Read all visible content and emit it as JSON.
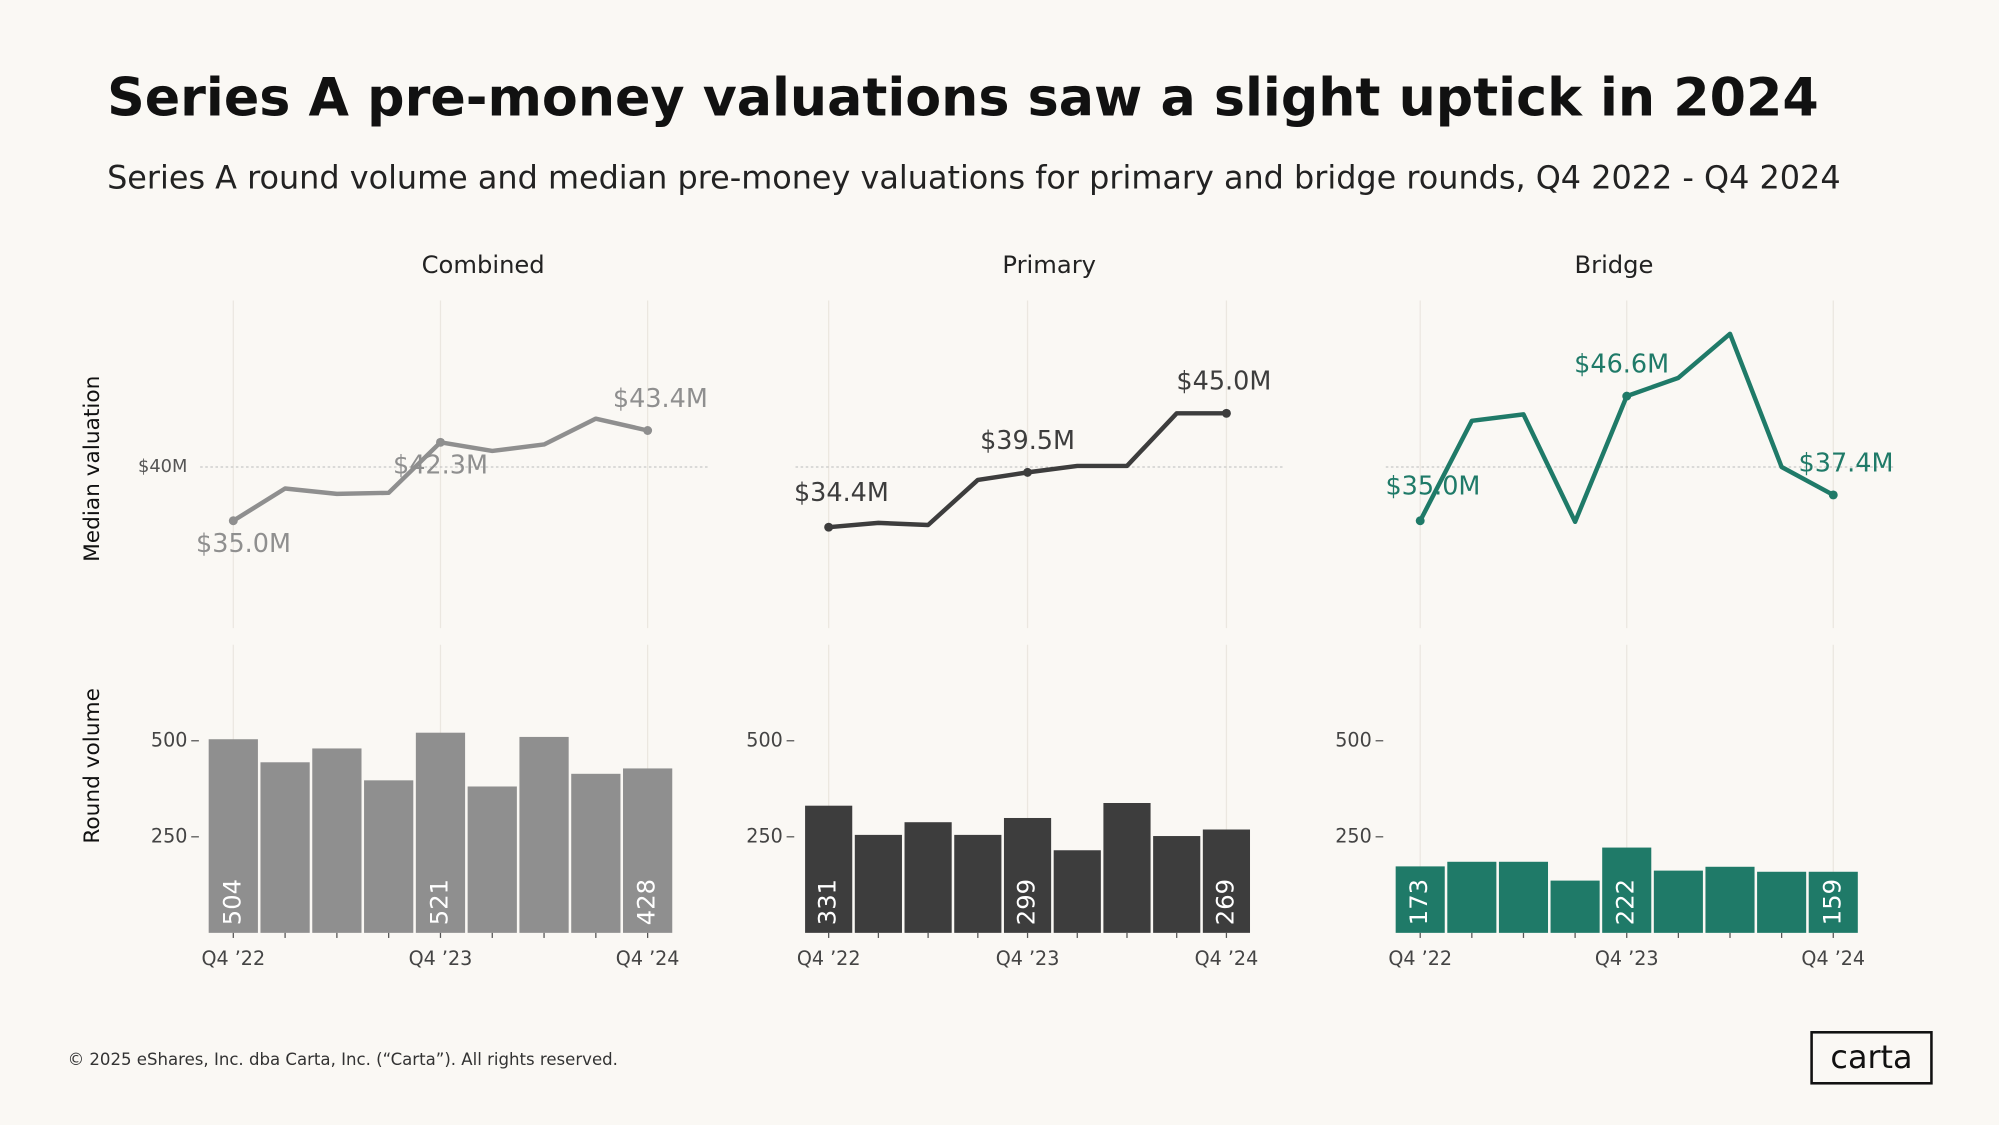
{
  "title": "Series A pre-money valuations saw a slight uptick in 2024",
  "subtitle": "Series A round volume and median pre-money valuations for  primary and bridge rounds, Q4 2022 - Q4 2024",
  "footer": "© 2025 eShares, Inc. dba Carta, Inc. (“Carta”). All rights reserved.",
  "logo": "carta",
  "chart_data": [
    {
      "type": "line",
      "title": "Combined",
      "y_label": "Median valuation",
      "color": "#8f8f8f",
      "categories": [
        "Q4 ’22",
        null,
        null,
        null,
        "Q4 ’23",
        null,
        null,
        null,
        "Q4 ’24"
      ],
      "values": [
        35.0,
        38.0,
        37.5,
        37.6,
        42.3,
        41.5,
        42.1,
        44.5,
        43.4
      ],
      "value_labels": [
        "$35.0M",
        null,
        null,
        null,
        "$42.3M",
        null,
        null,
        null,
        "$43.4M"
      ],
      "ylim": [
        25,
        55.5
      ],
      "yticks": [
        {
          "value": 40,
          "label": "$40M"
        }
      ],
      "tick_labels": true
    },
    {
      "type": "line",
      "title": "Primary",
      "color": "#3d3d3d",
      "categories": [
        "Q4 ’22",
        null,
        null,
        null,
        "Q4 ’23",
        null,
        null,
        null,
        "Q4 ’24"
      ],
      "values": [
        34.4,
        34.8,
        34.6,
        38.8,
        39.5,
        40.1,
        40.1,
        45.0,
        45.0
      ],
      "value_labels": [
        "$34.4M",
        null,
        null,
        null,
        "$39.5M",
        null,
        null,
        null,
        "$45.0M"
      ],
      "ylim": [
        25,
        55.5
      ],
      "yticks": [
        40
      ],
      "tick_labels": false
    },
    {
      "type": "line",
      "title": "Bridge",
      "color": "#1f7a68",
      "categories": [
        "Q4 ’22",
        null,
        null,
        null,
        "Q4 ’23",
        null,
        null,
        null,
        "Q4 ’24"
      ],
      "values": [
        35.0,
        44.3,
        44.9,
        34.9,
        46.6,
        48.3,
        52.4,
        40.0,
        37.4
      ],
      "value_labels": [
        "$35.0M",
        null,
        null,
        null,
        "$46.6M",
        null,
        null,
        null,
        "$37.4M"
      ],
      "ylim": [
        25,
        55.5
      ],
      "yticks": [
        40
      ],
      "tick_labels": false
    },
    {
      "type": "bar",
      "y_label": "Round volume",
      "color": "#8f8f8f",
      "categories": [
        "Q4 ’22",
        null,
        null,
        null,
        "Q4 ’23",
        null,
        null,
        null,
        "Q4 ’24"
      ],
      "values": [
        504,
        444,
        480,
        397,
        521,
        381,
        510,
        414,
        428
      ],
      "value_labels": [
        "504",
        null,
        null,
        null,
        "521",
        null,
        null,
        null,
        "428"
      ],
      "ylim": [
        0,
        750
      ],
      "yticks": [
        250,
        500
      ],
      "tick_labels": true
    },
    {
      "type": "bar",
      "color": "#3d3d3d",
      "categories": [
        "Q4 ’22",
        null,
        null,
        null,
        "Q4 ’23",
        null,
        null,
        null,
        "Q4 ’24"
      ],
      "values": [
        331,
        255,
        288,
        255,
        299,
        215,
        338,
        252,
        269
      ],
      "value_labels": [
        "331",
        null,
        null,
        null,
        "299",
        null,
        null,
        null,
        "269"
      ],
      "ylim": [
        0,
        750
      ],
      "yticks": [
        250,
        500
      ],
      "tick_labels": true
    },
    {
      "type": "bar",
      "color": "#1f7a68",
      "categories": [
        "Q4 ’22",
        null,
        null,
        null,
        "Q4 ’23",
        null,
        null,
        null,
        "Q4 ’24"
      ],
      "values": [
        173,
        185,
        185,
        136,
        222,
        162,
        172,
        159,
        159
      ],
      "value_labels": [
        "173",
        null,
        null,
        null,
        "222",
        null,
        null,
        null,
        "159"
      ],
      "ylim": [
        0,
        750
      ],
      "yticks": [
        250,
        500
      ],
      "tick_labels": true
    }
  ]
}
